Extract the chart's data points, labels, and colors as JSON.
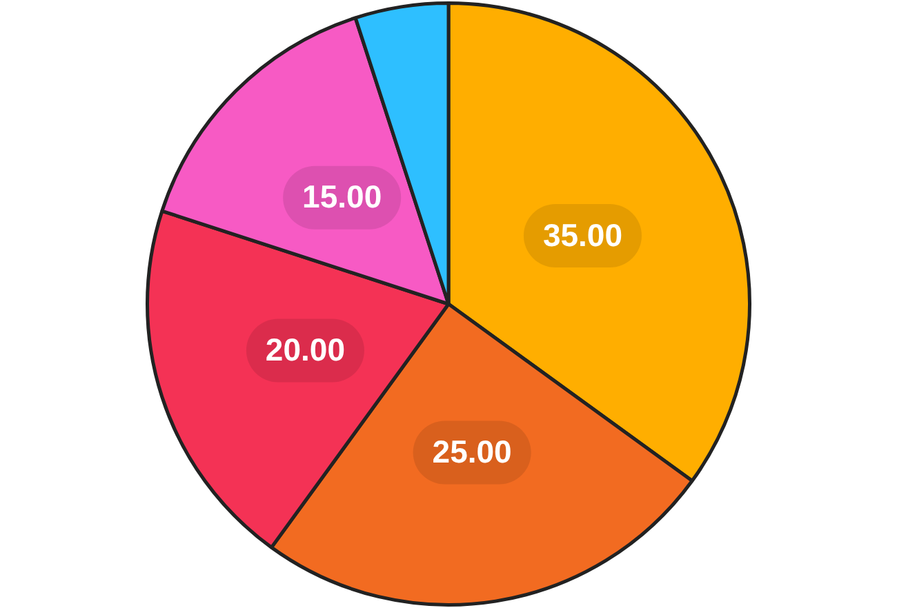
{
  "chart_data": {
    "type": "pie",
    "categories": [
      null,
      null,
      null,
      null,
      null
    ],
    "values": [
      35,
      25,
      20,
      15,
      5
    ],
    "colors": [
      "#ffae00",
      "#f26b21",
      "#f43255",
      "#f75ac4",
      "#2ebfff"
    ],
    "value_labels": [
      "35.00",
      "25.00",
      "20.00",
      "15.00",
      null
    ]
  }
}
